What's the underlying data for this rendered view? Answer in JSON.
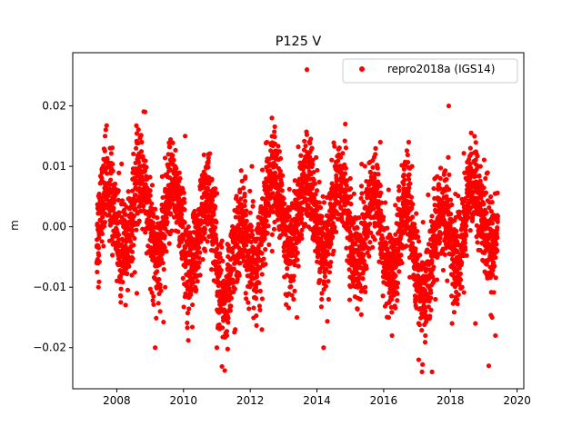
{
  "chart_data": {
    "type": "scatter",
    "title": "P125 V",
    "xlabel": "",
    "ylabel": "m",
    "xlim": [
      2006.68,
      2020.2
    ],
    "ylim": [
      -0.0268,
      0.0288
    ],
    "xticks": [
      2008,
      2010,
      2012,
      2014,
      2016,
      2018,
      2020
    ],
    "xtick_labels": [
      "2008",
      "2010",
      "2012",
      "2014",
      "2016",
      "2018",
      "2020"
    ],
    "yticks": [
      -0.02,
      -0.01,
      0.0,
      0.01,
      0.02
    ],
    "ytick_labels": [
      "−0.02",
      "−0.01",
      "0.00",
      "0.01",
      "0.02"
    ],
    "grid": false,
    "legend_position": "top-right",
    "series": [
      {
        "name": "repro2018a (IGS14)",
        "color": "#ff0000",
        "marker": "circle",
        "x_range": [
          2007.4,
          2019.42
        ],
        "sampling": "daily",
        "points": [
          [
            2007.4,
            -0.006
          ],
          [
            2007.45,
            -0.01
          ],
          [
            2007.55,
            0.008
          ],
          [
            2007.65,
            0.015
          ],
          [
            2007.8,
            0.013
          ],
          [
            2007.9,
            0.004
          ],
          [
            2008.05,
            0.006
          ],
          [
            2008.2,
            0.0
          ],
          [
            2008.35,
            -0.004
          ],
          [
            2008.45,
            -0.008
          ],
          [
            2008.6,
            -0.011
          ],
          [
            2008.75,
            0.014
          ],
          [
            2008.85,
            0.019
          ],
          [
            2009.0,
            0.006
          ],
          [
            2009.1,
            -0.005
          ],
          [
            2009.15,
            -0.02
          ],
          [
            2009.3,
            -0.014
          ],
          [
            2009.45,
            -0.01
          ],
          [
            2009.6,
            0.005
          ],
          [
            2009.75,
            0.01
          ],
          [
            2009.9,
            0.008
          ],
          [
            2010.05,
            0.015
          ],
          [
            2010.15,
            0.0
          ],
          [
            2010.35,
            -0.01
          ],
          [
            2010.5,
            -0.008
          ],
          [
            2010.65,
            -0.004
          ],
          [
            2010.75,
            0.012
          ],
          [
            2010.9,
            0.002
          ],
          [
            2011.0,
            -0.02
          ],
          [
            2011.1,
            -0.012
          ],
          [
            2011.3,
            -0.018
          ],
          [
            2011.4,
            -0.008
          ],
          [
            2011.55,
            -0.017
          ],
          [
            2011.7,
            -0.006
          ],
          [
            2011.85,
            0.008
          ],
          [
            2012.05,
            0.01
          ],
          [
            2012.2,
            -0.002
          ],
          [
            2012.35,
            -0.017
          ],
          [
            2012.5,
            0.014
          ],
          [
            2012.65,
            0.018
          ],
          [
            2012.8,
            0.012
          ],
          [
            2012.95,
            0.006
          ],
          [
            2013.1,
            -0.008
          ],
          [
            2013.3,
            -0.012
          ],
          [
            2013.4,
            -0.015
          ],
          [
            2013.55,
            0.004
          ],
          [
            2013.7,
            0.026
          ],
          [
            2013.85,
            0.013
          ],
          [
            2014.0,
            0.006
          ],
          [
            2014.1,
            -0.006
          ],
          [
            2014.2,
            -0.02
          ],
          [
            2014.35,
            -0.012
          ],
          [
            2014.5,
            -0.004
          ],
          [
            2014.65,
            0.01
          ],
          [
            2014.85,
            0.017
          ],
          [
            2015.0,
            0.008
          ],
          [
            2015.15,
            -0.004
          ],
          [
            2015.3,
            -0.012
          ],
          [
            2015.45,
            -0.01
          ],
          [
            2015.6,
            0.006
          ],
          [
            2015.75,
            0.012
          ],
          [
            2015.9,
            0.014
          ],
          [
            2016.05,
            0.004
          ],
          [
            2016.15,
            -0.015
          ],
          [
            2016.25,
            -0.018
          ],
          [
            2016.4,
            -0.01
          ],
          [
            2016.55,
            -0.006
          ],
          [
            2016.75,
            0.014
          ],
          [
            2016.85,
            0.01
          ],
          [
            2016.95,
            -0.012
          ],
          [
            2017.05,
            -0.022
          ],
          [
            2017.15,
            -0.024
          ],
          [
            2017.25,
            -0.018
          ],
          [
            2017.45,
            -0.024
          ],
          [
            2017.55,
            -0.012
          ],
          [
            2017.7,
            0.008
          ],
          [
            2017.85,
            0.006
          ],
          [
            2017.95,
            0.02
          ],
          [
            2018.05,
            -0.016
          ],
          [
            2018.2,
            -0.012
          ],
          [
            2018.35,
            -0.01
          ],
          [
            2018.45,
            0.0
          ],
          [
            2018.6,
            0.013
          ],
          [
            2018.75,
            -0.016
          ],
          [
            2018.9,
            0.01
          ],
          [
            2019.05,
            0.008
          ],
          [
            2019.15,
            -0.023
          ],
          [
            2019.25,
            -0.015
          ],
          [
            2019.35,
            -0.018
          ],
          [
            2019.4,
            -0.004
          ]
        ]
      }
    ]
  }
}
